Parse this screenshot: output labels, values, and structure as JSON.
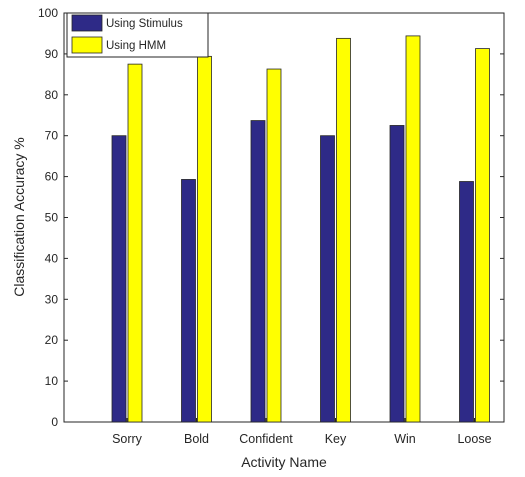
{
  "chart_data": {
    "type": "bar",
    "categories": [
      "Sorry",
      "Bold",
      "Confident",
      "Key",
      "Win",
      "Loose"
    ],
    "series": [
      {
        "name": "Using Stimulus",
        "color": "#2e2a87",
        "values": [
          70,
          59.3,
          73.7,
          70,
          72.5,
          58.8
        ]
      },
      {
        "name": "Using HMM",
        "color": "#ffff00",
        "values": [
          87.5,
          89.4,
          86.3,
          93.8,
          94.4,
          91.3
        ]
      }
    ],
    "xlabel": "Activity Name",
    "ylabel": "Classification Accuracy %",
    "ylim": [
      0,
      100
    ],
    "yticks": [
      0,
      10,
      20,
      30,
      40,
      50,
      60,
      70,
      80,
      90,
      100
    ],
    "legend_position": "top-left",
    "grid": false
  }
}
